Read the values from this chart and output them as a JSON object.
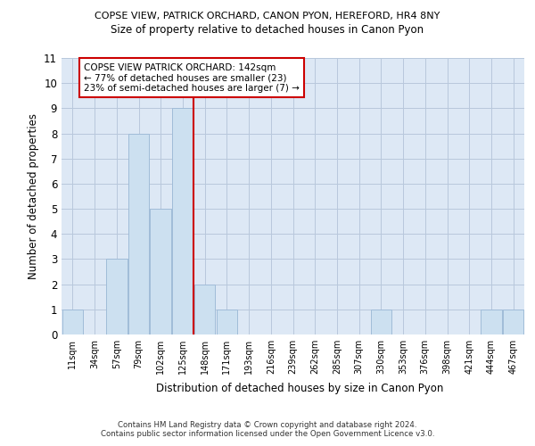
{
  "title1": "COPSE VIEW, PATRICK ORCHARD, CANON PYON, HEREFORD, HR4 8NY",
  "title2": "Size of property relative to detached houses in Canon Pyon",
  "xlabel": "Distribution of detached houses by size in Canon Pyon",
  "ylabel": "Number of detached properties",
  "bins": [
    "11sqm",
    "34sqm",
    "57sqm",
    "79sqm",
    "102sqm",
    "125sqm",
    "148sqm",
    "171sqm",
    "193sqm",
    "216sqm",
    "239sqm",
    "262sqm",
    "285sqm",
    "307sqm",
    "330sqm",
    "353sqm",
    "376sqm",
    "398sqm",
    "421sqm",
    "444sqm",
    "467sqm"
  ],
  "values": [
    1,
    0,
    3,
    8,
    5,
    9,
    2,
    1,
    0,
    0,
    0,
    0,
    0,
    0,
    1,
    0,
    0,
    0,
    0,
    1,
    1
  ],
  "bar_color": "#cce0f0",
  "bar_edge_color": "#a0bcd8",
  "vline_x": 5.5,
  "vline_color": "#cc0000",
  "annotation_title": "COPSE VIEW PATRICK ORCHARD: 142sqm",
  "annotation_line1": "← 77% of detached houses are smaller (23)",
  "annotation_line2": "23% of semi-detached houses are larger (7) →",
  "annotation_box_color": "#ffffff",
  "annotation_box_edge": "#cc0000",
  "ylim": [
    0,
    11
  ],
  "yticks": [
    0,
    1,
    2,
    3,
    4,
    5,
    6,
    7,
    8,
    9,
    10,
    11
  ],
  "background_color": "#dde8f5",
  "footnote1": "Contains HM Land Registry data © Crown copyright and database right 2024.",
  "footnote2": "Contains public sector information licensed under the Open Government Licence v3.0."
}
